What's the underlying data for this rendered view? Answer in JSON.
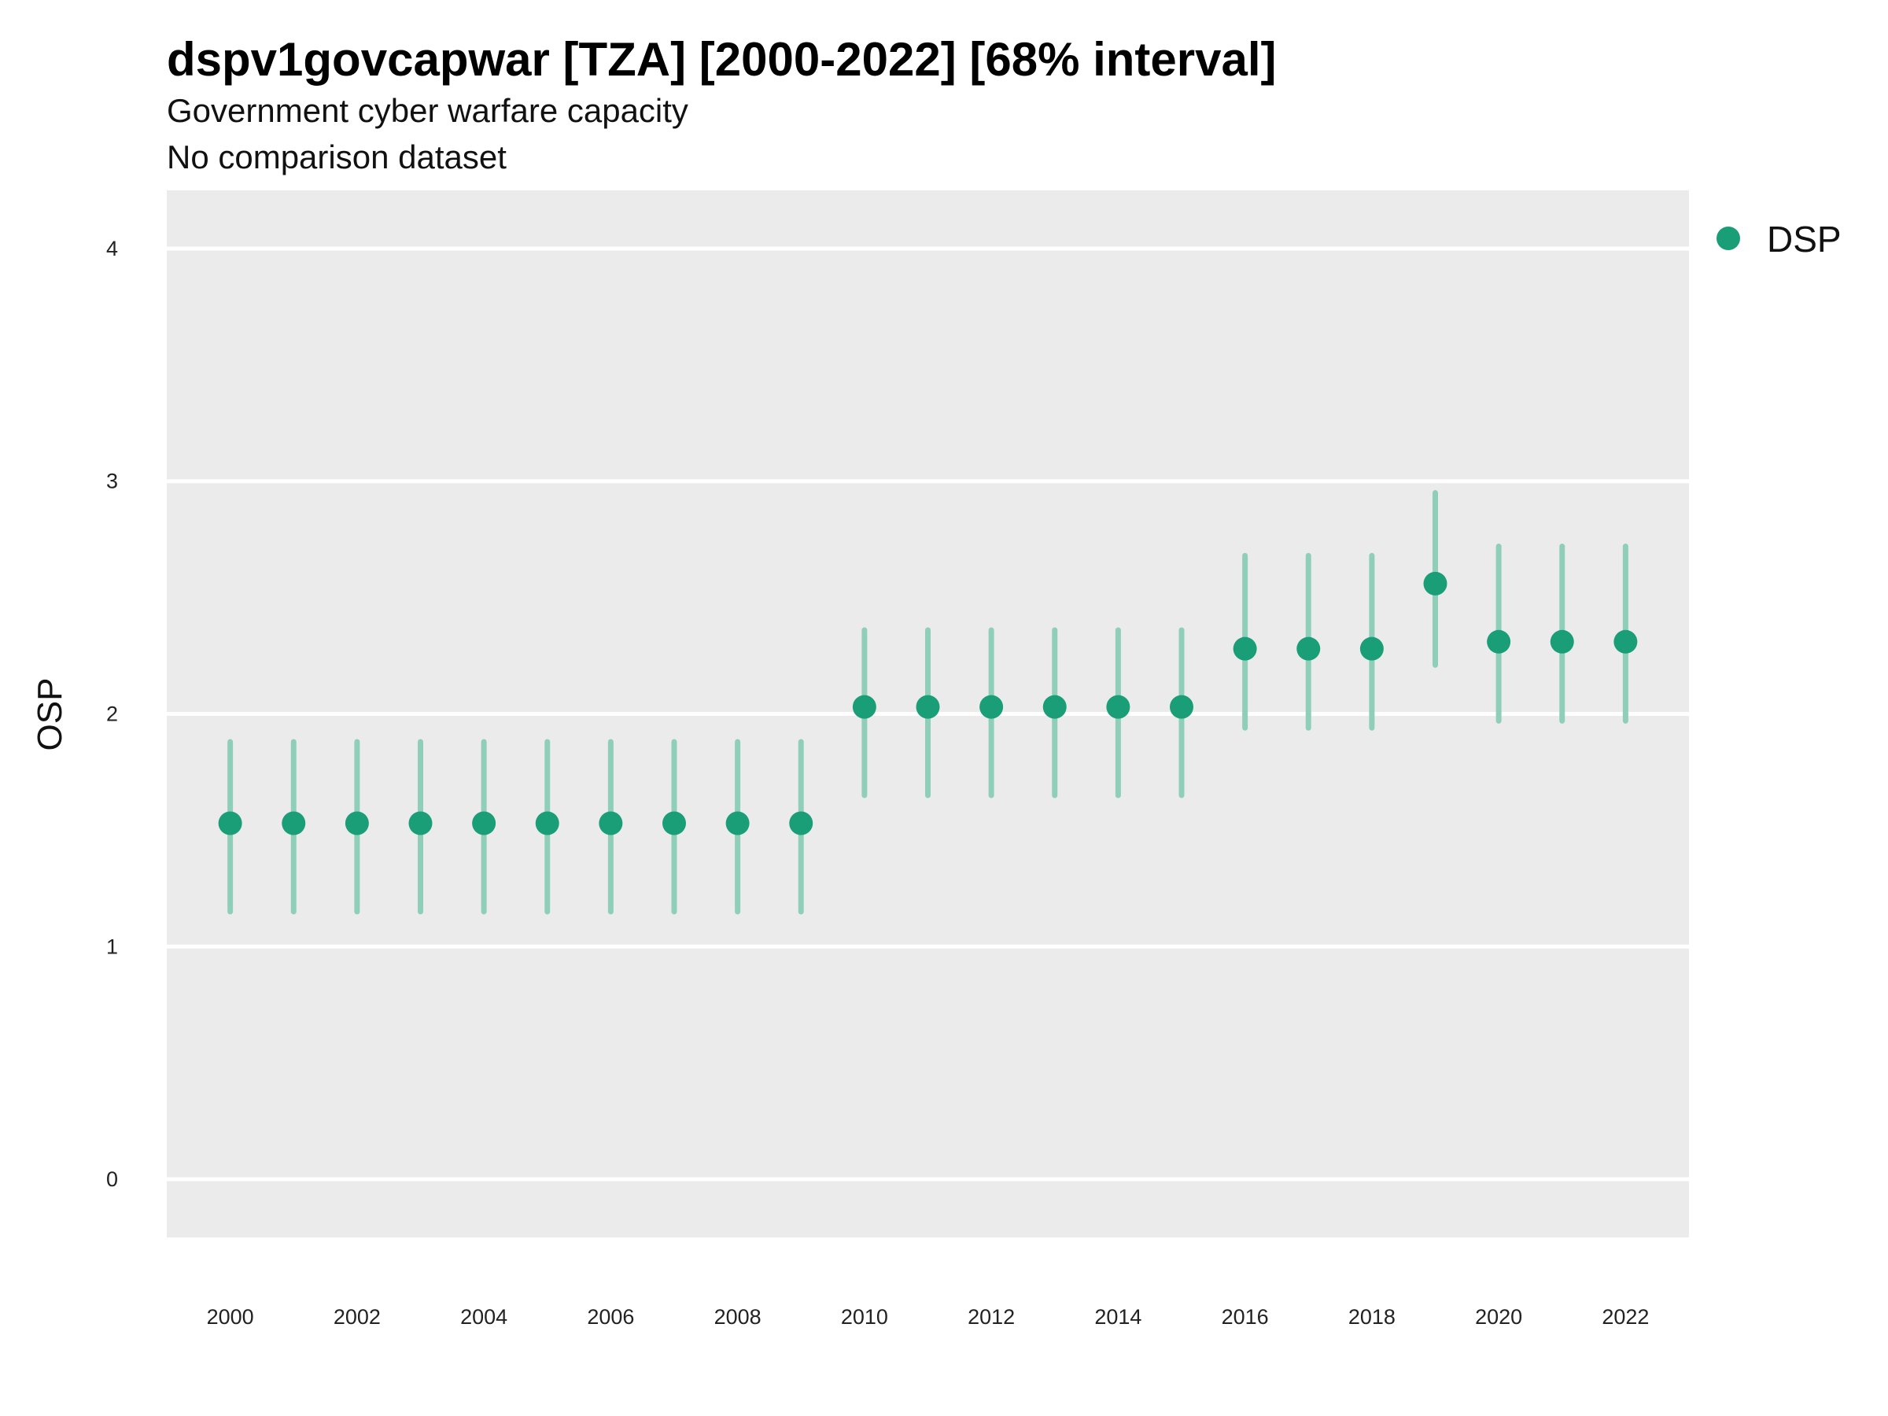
{
  "title": "dspv1govcapwar [TZA] [2000-2022] [68% interval]",
  "subtitle_1": "Government cyber warfare capacity",
  "subtitle_2": "No comparison dataset",
  "colors": {
    "point": "#1a9e77",
    "interval": "#8fcfb9",
    "panel": "#ebebeb",
    "grid": "#ffffff"
  },
  "chart_data": {
    "type": "scatter",
    "title": "dspv1govcapwar [TZA] [2000-2022] [68% interval]",
    "ylabel": "OSP",
    "xlabel": "",
    "ylim": [
      -0.25,
      4.25
    ],
    "yticks": [
      0,
      1,
      2,
      3,
      4
    ],
    "xticks": [
      2000,
      2002,
      2004,
      2006,
      2008,
      2010,
      2012,
      2014,
      2016,
      2018,
      2020,
      2022
    ],
    "grid": true,
    "legend": {
      "position": "right",
      "entries": [
        "DSP"
      ]
    },
    "series": [
      {
        "name": "DSP",
        "x": [
          2000,
          2001,
          2002,
          2003,
          2004,
          2005,
          2006,
          2007,
          2008,
          2009,
          2010,
          2011,
          2012,
          2013,
          2014,
          2015,
          2016,
          2017,
          2018,
          2019,
          2020,
          2021,
          2022
        ],
        "y": [
          1.53,
          1.53,
          1.53,
          1.53,
          1.53,
          1.53,
          1.53,
          1.53,
          1.53,
          1.53,
          2.03,
          2.03,
          2.03,
          2.03,
          2.03,
          2.03,
          2.28,
          2.28,
          2.28,
          2.56,
          2.31,
          2.31,
          2.31
        ],
        "lower": [
          1.15,
          1.15,
          1.15,
          1.15,
          1.15,
          1.15,
          1.15,
          1.15,
          1.15,
          1.15,
          1.65,
          1.65,
          1.65,
          1.65,
          1.65,
          1.65,
          1.94,
          1.94,
          1.94,
          2.21,
          1.97,
          1.97,
          1.97
        ],
        "upper": [
          1.88,
          1.88,
          1.88,
          1.88,
          1.88,
          1.88,
          1.88,
          1.88,
          1.88,
          1.88,
          2.36,
          2.36,
          2.36,
          2.36,
          2.36,
          2.36,
          2.68,
          2.68,
          2.68,
          2.95,
          2.72,
          2.72,
          2.72
        ]
      }
    ]
  }
}
